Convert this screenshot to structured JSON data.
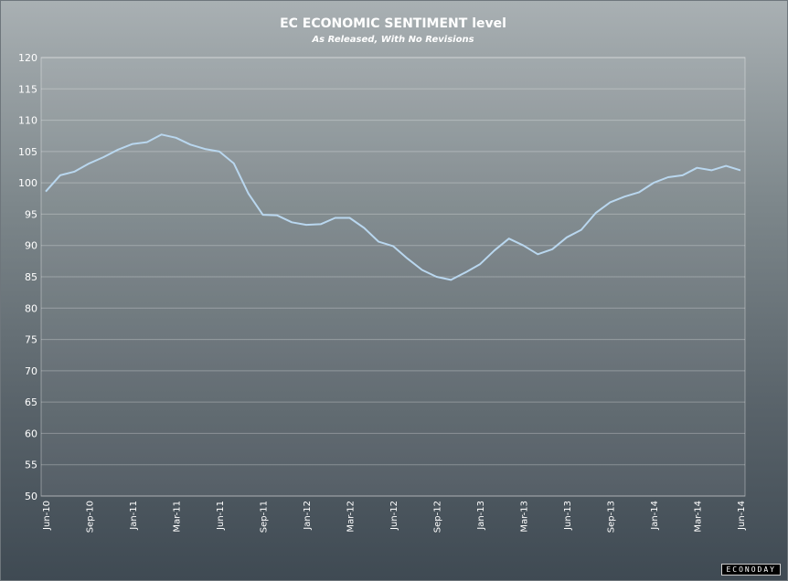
{
  "chart_data": {
    "type": "line",
    "title": "EC ECONOMIC SENTIMENT level",
    "subtitle": "As Released, With No Revisions",
    "ylim": [
      50,
      120
    ],
    "yticks": [
      50,
      55,
      60,
      65,
      70,
      75,
      80,
      85,
      90,
      95,
      100,
      105,
      110,
      115,
      120
    ],
    "xtick_labels": [
      "Jun-10",
      "Sep-10",
      "Jan-11",
      "Mar-11",
      "Jun-11",
      "Sep-11",
      "Jan-12",
      "Mar-12",
      "Jun-12",
      "Sep-12",
      "Jan-13",
      "Mar-13",
      "Jun-13",
      "Sep-13",
      "Jan-14",
      "Mar-14",
      "Jun-14"
    ],
    "grid": true,
    "series": [
      {
        "color": "#b9d7ef",
        "values": [
          98.6,
          101.2,
          101.8,
          103.1,
          104.1,
          105.3,
          106.2,
          106.5,
          107.7,
          107.2,
          106.1,
          105.4,
          105.0,
          103.1,
          98.3,
          94.9,
          94.8,
          93.7,
          93.3,
          93.4,
          94.4,
          94.4,
          92.8,
          90.6,
          89.9,
          87.9,
          86.1,
          85.0,
          84.5,
          85.7,
          87.0,
          89.2,
          91.1,
          90.0,
          88.6,
          89.4,
          91.3,
          92.5,
          95.2,
          96.9,
          97.8,
          98.5,
          100.0,
          100.9,
          101.2,
          102.4,
          102.0,
          102.7,
          102.0
        ]
      }
    ]
  },
  "brand": "ECONODAY"
}
